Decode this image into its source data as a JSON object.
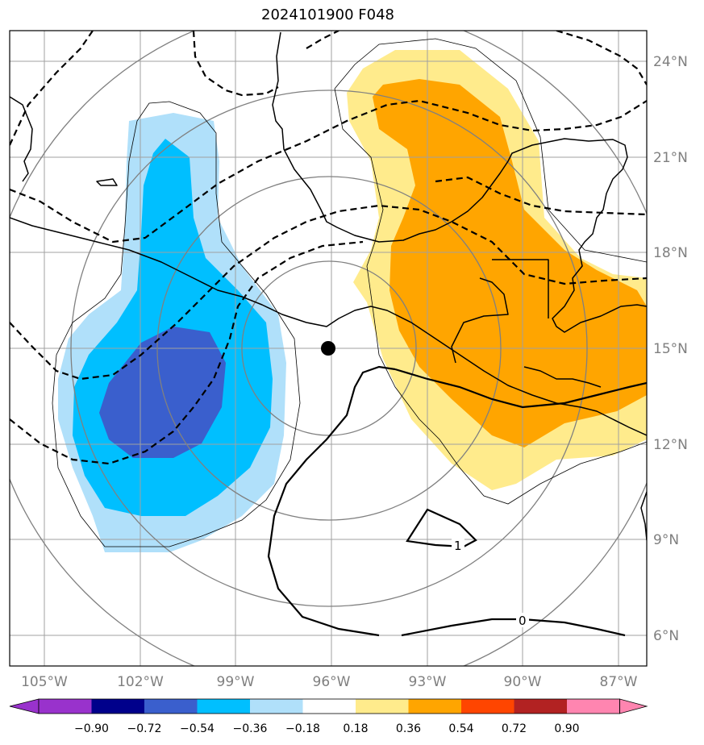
{
  "title": "2024101900 F048",
  "map": {
    "lon_labels": [
      "105°W",
      "102°W",
      "99°W",
      "96°W",
      "93°W",
      "90°W",
      "87°W"
    ],
    "lat_labels": [
      "24°N",
      "21°N",
      "18°N",
      "15°N",
      "12°N",
      "9°N",
      "6°N"
    ],
    "center_marker": {
      "lon": -96.1,
      "lat": 15.0
    },
    "contour_labels": [
      "1",
      "0"
    ],
    "colors": {
      "grid": "#a0a0a0",
      "range_rings": "#808080",
      "coast": "#000000",
      "contour": "#000000",
      "marker": "#000000"
    }
  },
  "colorbar": {
    "ticks": [
      "−0.90",
      "−0.72",
      "−0.54",
      "−0.36",
      "−0.18",
      "0.18",
      "0.36",
      "0.54",
      "0.72",
      "0.90"
    ],
    "colors": [
      "#9932cc",
      "#00008b",
      "#3a5fcd",
      "#00bfff",
      "#b0e0fa",
      "#ffffff",
      "#ffeb8c",
      "#ffa500",
      "#ff4500",
      "#b22222",
      "#ff85b0"
    ]
  }
}
